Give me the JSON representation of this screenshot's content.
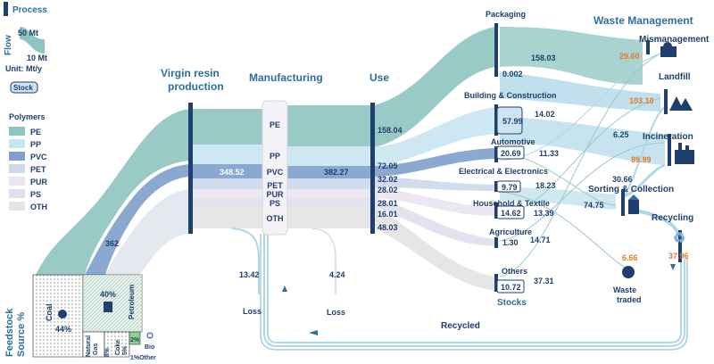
{
  "legend": {
    "process_label": "Process",
    "flow_label": "Flow",
    "flow_big": "50 Mt",
    "flow_small": "10 Mt",
    "unit": "Unit: Mt/y",
    "stock_label": "Stock",
    "polymers_title": "Polymers",
    "polymers": [
      {
        "name": "PE",
        "color": "#8fc5bf"
      },
      {
        "name": "PP",
        "color": "#c8e6f2"
      },
      {
        "name": "PVC",
        "color": "#7f9fcd"
      },
      {
        "name": "PET",
        "color": "#cfd9ec"
      },
      {
        "name": "PUR",
        "color": "#ebe6f1"
      },
      {
        "name": "PS",
        "color": "#dfe0ee"
      },
      {
        "name": "OTH",
        "color": "#e4e4e4"
      }
    ]
  },
  "stages": {
    "virgin": "Virgin resin\nproduction",
    "manufacturing": "Manufacturing",
    "use": "Use",
    "waste_management": "Waste Management"
  },
  "feedstock": {
    "title": "Feedstock\nSource %",
    "coal_label": "Coal",
    "coal_pct": "44%",
    "petroleum_label": "Petroleum",
    "petroleum_pct": "40%",
    "natural_gas_label": "Natural\nGas",
    "natural_gas_pct": "8%",
    "coke_label": "Coke",
    "coke_pct": "5%",
    "bio_label": "Bio",
    "bio_pct": "2%",
    "other_label": "1%Other"
  },
  "flows": {
    "feedstock_total": "362",
    "virgin_to_mfg": "348.52",
    "mfg_to_use": "382.27",
    "loss_1": "13.42",
    "loss_2": "4.24",
    "loss_label": "Loss",
    "use_values": [
      "158.04",
      "72.05",
      "32.02",
      "28.02",
      "28.01",
      "16.01",
      "48.03"
    ],
    "recycled_label": "Recycled"
  },
  "manufacturing_labels": [
    "PE",
    "PP",
    "PVC",
    "PET",
    "PUR",
    "PS",
    "OTH"
  ],
  "sectors": [
    {
      "name": "Packaging",
      "stock": "0.002",
      "out": "158.03"
    },
    {
      "name": "Building & Construction",
      "stock": "57.99",
      "out": "14.02"
    },
    {
      "name": "Automotive",
      "stock": "20.69",
      "out": "11.33"
    },
    {
      "name": "Electrical & Electronics",
      "stock": "9.79",
      "out": "18.23"
    },
    {
      "name": "Household & Textile",
      "stock": "14.62",
      "out": "13.39"
    },
    {
      "name": "Agriculture",
      "stock": "1.30",
      "out": "14.71"
    },
    {
      "name": "Others",
      "stock": "10.72",
      "out": "37.31"
    }
  ],
  "stocks_label": "Stocks",
  "waste": {
    "mismanagement": {
      "label": "Mismanagement",
      "value": "29.60"
    },
    "landfill": {
      "label": "Landfill",
      "value": "103.10"
    },
    "incineration": {
      "label": "Incineration",
      "value": "89.99",
      "in_value": "6.25"
    },
    "sorting": {
      "label": "Sorting & Collection",
      "value": "74.75",
      "extra": "30.66"
    },
    "recycling": {
      "label": "Recycling",
      "value": "37.96"
    },
    "waste_traded": {
      "label": "Waste\ntraded",
      "value": "6.66"
    }
  },
  "colors": {
    "process_bar": "#1f3f6e",
    "stage_title": "#2d6f9c",
    "orange_value": "#e07b28",
    "flow_blue": "#a7d3e6"
  }
}
